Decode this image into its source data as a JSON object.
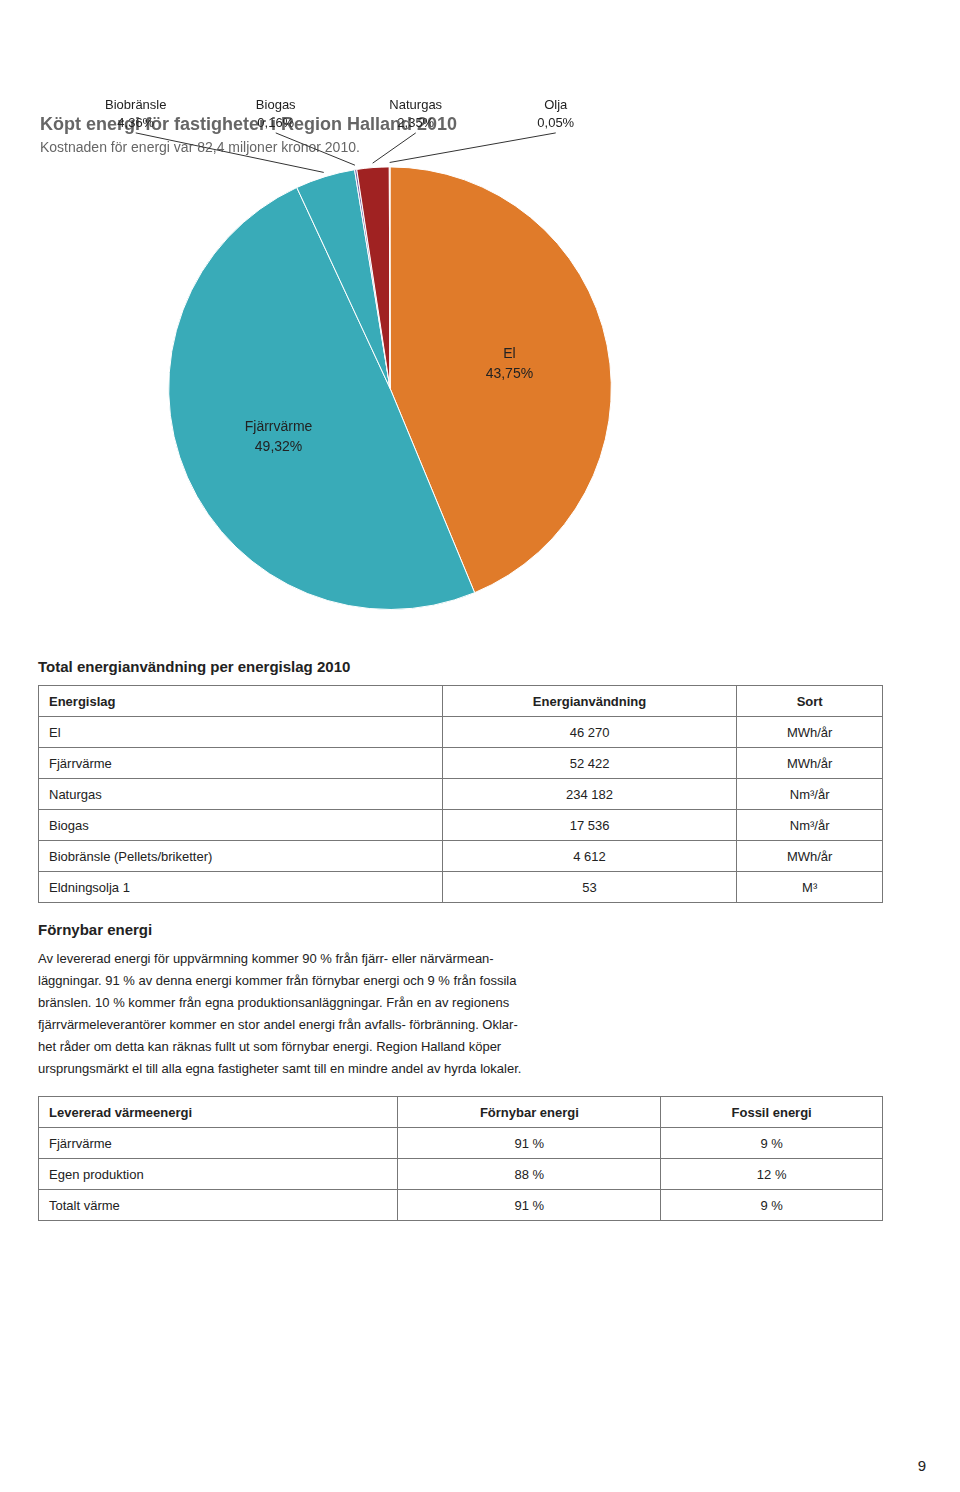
{
  "chart_data": {
    "type": "pie",
    "title": "Köpt energi för fastigheter i Region Halland 2010",
    "subtitle": "Kostnaden för energi var 82,4 miljoner kronor 2010.",
    "categories": [
      "El",
      "Fjärrvärme",
      "Biobränsle",
      "Biogas",
      "Naturgas",
      "Olja"
    ],
    "values": [
      43.75,
      49.32,
      4.36,
      0.16,
      2.35,
      0.05
    ],
    "value_labels": [
      "43,75%",
      "49,32%",
      "4,36%",
      "0,16%",
      "2,35%",
      "0,05%"
    ],
    "colors": [
      "#E07B2A",
      "#39ABB8",
      "#39ABB8",
      "#7868A8",
      "#A02222",
      "#E07B2A"
    ],
    "data_labels": true
  },
  "sections": [
    {
      "title": "Total energianvändning per energislag 2010",
      "table": {
        "headers": [
          "Energislag",
          "Energianvändning",
          "Sort"
        ],
        "rows": [
          [
            "El",
            "46 270",
            "MWh/år"
          ],
          [
            "Fjärrvärme",
            "52 422",
            "MWh/år"
          ],
          [
            "Naturgas",
            "234 182",
            "Nm³/år"
          ],
          [
            "Biogas",
            "17 536",
            "Nm³/år"
          ],
          [
            "Biobränsle (Pellets/briketter)",
            "4 612",
            "MWh/år"
          ],
          [
            "Eldningsolja 1",
            "53",
            "M³"
          ]
        ]
      }
    },
    {
      "title": "Förnybar energi",
      "text_lines": [
        "Av levererad energi för uppvärmning kommer 90 % från fjärr- eller närvärmean-",
        "läggningar. 91 % av denna energi kommer från förnybar energi och 9 % från fossila",
        "bränslen. 10 % kommer från egna produktionsanläggningar. Från en av regionens",
        "fjärrvärmeleverantörer kommer en stor andel energi från avfalls- förbränning. Oklar-",
        "het råder om detta kan räknas fullt ut som förnybar energi. Region Halland köper",
        "ursprungsmärkt el till alla egna fastigheter samt till en mindre andel av hyrda lokaler."
      ],
      "table": {
        "headers": [
          "Levererad värmeenergi",
          "Förnybar energi",
          "Fossil energi"
        ],
        "rows": [
          [
            "Fjärrvärme",
            "91 %",
            "9 %"
          ],
          [
            "Egen produktion",
            "88 %",
            "12 %"
          ],
          [
            "Totalt värme",
            "91 %",
            "9 %"
          ]
        ]
      }
    }
  ],
  "page_number": "9"
}
